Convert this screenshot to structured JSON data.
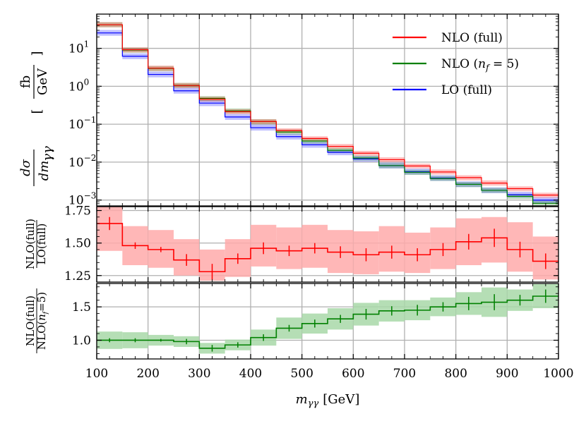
{
  "chart_data": [
    {
      "panel": "main",
      "type": "line",
      "x_bin_edges": [
        100,
        150,
        200,
        250,
        300,
        350,
        400,
        450,
        500,
        550,
        600,
        650,
        700,
        750,
        800,
        850,
        900,
        950,
        1000
      ],
      "yscale": "log",
      "ylim": [
        0.0007,
        80
      ],
      "ytick_labels": [
        {
          "value": 10,
          "base": "10",
          "exp": "1"
        },
        {
          "value": 1,
          "base": "10",
          "exp": "0"
        },
        {
          "value": 0.1,
          "base": "10",
          "exp": "−1"
        },
        {
          "value": 0.01,
          "base": "10",
          "exp": "−2"
        },
        {
          "value": 0.001,
          "base": "10",
          "exp": "−3"
        }
      ],
      "ylabel": {
        "lhs_num": "dσ",
        "lhs_den": "dm",
        "lhs_den_sub": "γγ",
        "unit_num": "fb",
        "unit_den": "GeV"
      },
      "series": [
        {
          "name": "NLO (full)",
          "color": "#ff0000",
          "values": [
            42,
            9.2,
            3.0,
            1.05,
            0.46,
            0.215,
            0.118,
            0.068,
            0.042,
            0.026,
            0.0172,
            0.0116,
            0.0079,
            0.0055,
            0.0039,
            0.0028,
            0.002,
            0.00135
          ],
          "band_lo": [
            36,
            7.8,
            2.55,
            0.9,
            0.4,
            0.185,
            0.102,
            0.059,
            0.036,
            0.0225,
            0.0148,
            0.01,
            0.0068,
            0.0047,
            0.0033,
            0.0024,
            0.0017,
            0.00115
          ],
          "band_hi": [
            49,
            10.6,
            3.5,
            1.22,
            0.53,
            0.248,
            0.136,
            0.078,
            0.048,
            0.03,
            0.0198,
            0.0134,
            0.0091,
            0.0064,
            0.0045,
            0.0033,
            0.0023,
            0.00156
          ]
        },
        {
          "name": "NLO (n_f = 5)",
          "color": "#008000",
          "values": [
            42,
            9.0,
            2.95,
            1.06,
            0.48,
            0.225,
            0.117,
            0.062,
            0.036,
            0.0205,
            0.0128,
            0.0081,
            0.0054,
            0.0037,
            0.0026,
            0.0018,
            0.00125,
            0.00082
          ],
          "band_lo": [
            36,
            7.7,
            2.5,
            0.91,
            0.41,
            0.193,
            0.1,
            0.053,
            0.031,
            0.0175,
            0.011,
            0.0069,
            0.0046,
            0.0032,
            0.0022,
            0.00155,
            0.00107,
            0.0007
          ],
          "band_hi": [
            49,
            10.4,
            3.4,
            1.23,
            0.55,
            0.26,
            0.135,
            0.072,
            0.042,
            0.0238,
            0.0148,
            0.0094,
            0.0063,
            0.0043,
            0.003,
            0.0021,
            0.00145,
            0.00095
          ]
        },
        {
          "name": "LO (full)",
          "color": "#0000ff",
          "values": [
            25.5,
            6.2,
            2.05,
            0.76,
            0.36,
            0.155,
            0.081,
            0.047,
            0.0287,
            0.0181,
            0.0122,
            0.0081,
            0.0056,
            0.0038,
            0.0026,
            0.0018,
            0.00138,
            0.00099
          ],
          "band_lo": [
            21.5,
            5.2,
            1.72,
            0.64,
            0.3,
            0.13,
            0.068,
            0.0395,
            0.024,
            0.0152,
            0.0102,
            0.0068,
            0.0047,
            0.0032,
            0.0022,
            0.00152,
            0.00116,
            0.00083
          ],
          "band_hi": [
            30.5,
            7.4,
            2.45,
            0.91,
            0.43,
            0.185,
            0.097,
            0.056,
            0.0342,
            0.0216,
            0.0146,
            0.0097,
            0.0067,
            0.0045,
            0.0031,
            0.00215,
            0.00165,
            0.00118
          ]
        }
      ],
      "legend": {
        "location": "top-right",
        "entries": [
          {
            "label": "NLO (full)",
            "color": "#ff0000"
          },
          {
            "label_pre": "NLO (",
            "label_var": "n",
            "label_sub": "f",
            "label_post": " = 5)",
            "color": "#008000"
          },
          {
            "label": "LO (full)",
            "color": "#0000ff"
          }
        ]
      }
    },
    {
      "panel": "ratio1",
      "type": "line",
      "x_bin_edges": [
        100,
        150,
        200,
        250,
        300,
        350,
        400,
        450,
        500,
        550,
        600,
        650,
        700,
        750,
        800,
        850,
        900,
        950,
        1000
      ],
      "ylim": [
        1.2,
        1.78
      ],
      "yticks": [
        1.75,
        1.5,
        1.25
      ],
      "ytick_labels": [
        "1.75",
        "1.50",
        "1.25"
      ],
      "ylabel": {
        "num": "NLO(full)",
        "den": "LO(full)"
      },
      "color": "#ff0000",
      "band_color": "#ffaaaa",
      "values": [
        1.65,
        1.48,
        1.45,
        1.37,
        1.28,
        1.38,
        1.46,
        1.44,
        1.46,
        1.43,
        1.41,
        1.43,
        1.41,
        1.45,
        1.51,
        1.54,
        1.45,
        1.36
      ],
      "errors": [
        0.05,
        0.025,
        0.02,
        0.045,
        0.06,
        0.04,
        0.045,
        0.04,
        0.04,
        0.045,
        0.05,
        0.05,
        0.05,
        0.05,
        0.06,
        0.07,
        0.06,
        0.06
      ],
      "band_lo": [
        1.44,
        1.33,
        1.31,
        1.25,
        1.21,
        1.24,
        1.32,
        1.3,
        1.31,
        1.27,
        1.26,
        1.28,
        1.27,
        1.3,
        1.33,
        1.35,
        1.28,
        1.22
      ],
      "band_hi": [
        1.78,
        1.63,
        1.6,
        1.53,
        1.45,
        1.53,
        1.64,
        1.62,
        1.64,
        1.6,
        1.59,
        1.63,
        1.58,
        1.62,
        1.69,
        1.7,
        1.66,
        1.55
      ]
    },
    {
      "panel": "ratio2",
      "type": "line",
      "x_bin_edges": [
        100,
        150,
        200,
        250,
        300,
        350,
        400,
        450,
        500,
        550,
        600,
        650,
        700,
        750,
        800,
        850,
        900,
        950,
        1000
      ],
      "xlabel": {
        "var": "m",
        "sub": "γγ",
        "unit": "[GeV]"
      },
      "xticks": [
        100,
        200,
        300,
        400,
        500,
        600,
        700,
        800,
        900,
        1000
      ],
      "xtick_labels": [
        "100",
        "200",
        "300",
        "400",
        "500",
        "600",
        "700",
        "800",
        "900",
        "1000"
      ],
      "ylim": [
        0.72,
        1.85
      ],
      "yticks": [
        1.5,
        1.0
      ],
      "ytick_labels": [
        "1.5",
        "1.0"
      ],
      "ylabel": {
        "num": "NLO(full)",
        "den_pre": "NLO(",
        "den_var": "n",
        "den_sub": "f",
        "den_post": "=5)"
      },
      "color": "#008000",
      "band_color": "#a8d8a8",
      "values": [
        1.0,
        1.0,
        1.0,
        0.98,
        0.88,
        0.93,
        1.04,
        1.18,
        1.25,
        1.32,
        1.39,
        1.44,
        1.45,
        1.5,
        1.55,
        1.57,
        1.6,
        1.66
      ],
      "errors": [
        0.03,
        0.03,
        0.02,
        0.04,
        0.05,
        0.04,
        0.05,
        0.05,
        0.06,
        0.06,
        0.08,
        0.07,
        0.08,
        0.07,
        0.1,
        0.12,
        0.08,
        0.1
      ],
      "band_lo": [
        0.87,
        0.88,
        0.92,
        0.9,
        0.8,
        0.85,
        0.92,
        1.02,
        1.1,
        1.16,
        1.22,
        1.28,
        1.3,
        1.36,
        1.38,
        1.35,
        1.44,
        1.48
      ],
      "band_hi": [
        1.13,
        1.12,
        1.08,
        1.06,
        0.96,
        1.01,
        1.16,
        1.34,
        1.4,
        1.48,
        1.56,
        1.6,
        1.6,
        1.64,
        1.72,
        1.79,
        1.76,
        1.84
      ]
    }
  ]
}
